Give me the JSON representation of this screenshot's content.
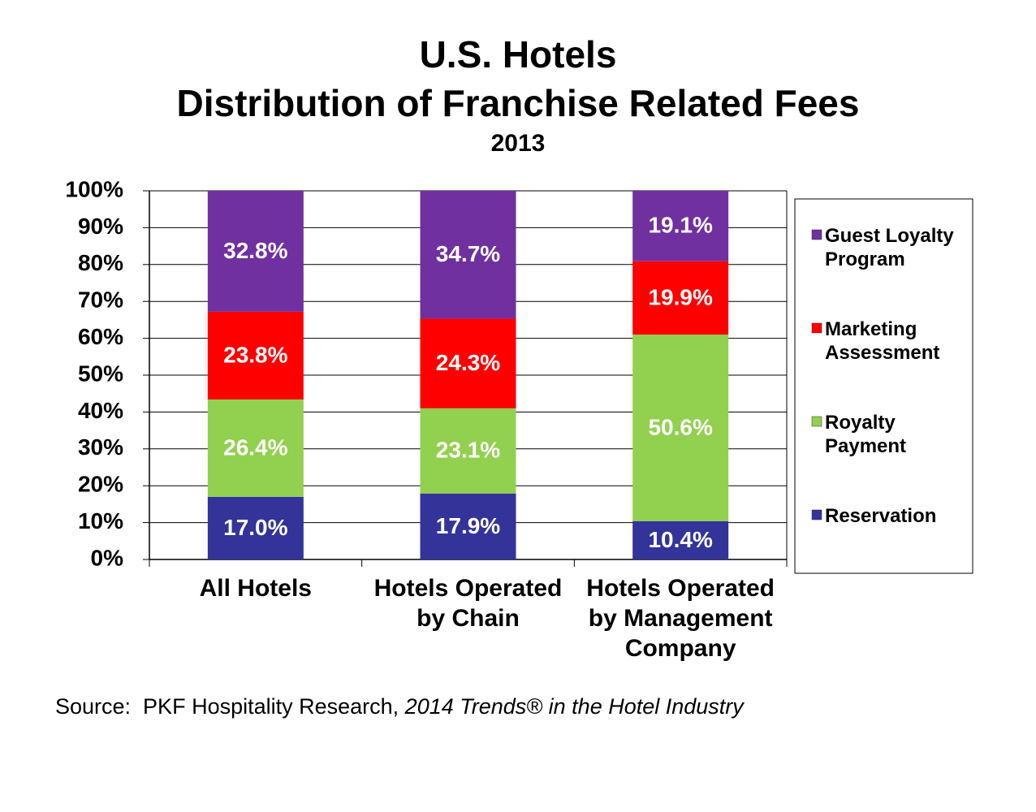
{
  "chart_data": {
    "type": "stacked-bar",
    "title": "U.S. Hotels",
    "subtitle": "Distribution of Franchise Related Fees",
    "year": "2013",
    "categories": [
      "All Hotels",
      "Hotels Operated\nby Chain",
      "Hotels Operated\nby Management\nCompany"
    ],
    "series": [
      {
        "name": "Reservation",
        "color": "#333399",
        "values": [
          17.0,
          17.9,
          10.4
        ],
        "value_labels": [
          "17.0%",
          "17.9%",
          "10.4%"
        ]
      },
      {
        "name": "Royalty\nPayment",
        "color": "#92d050",
        "values": [
          26.4,
          23.1,
          50.6
        ],
        "value_labels": [
          "26.4%",
          "23.1%",
          "50.6%"
        ]
      },
      {
        "name": "Marketing\nAssessment",
        "color": "#ff0000",
        "values": [
          23.8,
          24.3,
          19.9
        ],
        "value_labels": [
          "23.8%",
          "24.3%",
          "19.9%"
        ]
      },
      {
        "name": "Guest Loyalty\nProgram",
        "color": "#7030a0",
        "values": [
          32.8,
          34.7,
          19.1
        ],
        "value_labels": [
          "32.8%",
          "34.7%",
          "19.1%"
        ]
      }
    ],
    "ylim": [
      0,
      100
    ],
    "yticks": [
      {
        "value": 0,
        "label": "0%"
      },
      {
        "value": 10,
        "label": "10%"
      },
      {
        "value": 20,
        "label": "20%"
      },
      {
        "value": 30,
        "label": "30%"
      },
      {
        "value": 40,
        "label": "40%"
      },
      {
        "value": 50,
        "label": "50%"
      },
      {
        "value": 60,
        "label": "60%"
      },
      {
        "value": 70,
        "label": "70%"
      },
      {
        "value": 80,
        "label": "80%"
      },
      {
        "value": 90,
        "label": "90%"
      },
      {
        "value": 100,
        "label": "100%"
      }
    ],
    "grid": true,
    "legend": "right",
    "source": "Source:  PKF Hospitality Research, ",
    "source_title": "2014 Trends® in the Hotel Industry"
  }
}
